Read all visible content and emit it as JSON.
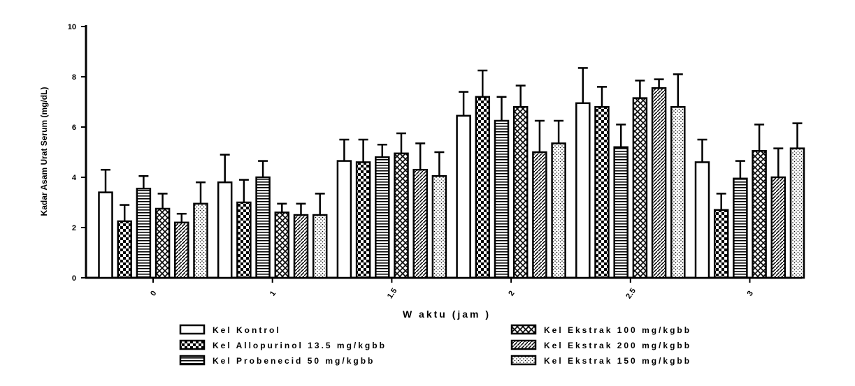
{
  "chart_data": {
    "type": "bar",
    "xlabel": "W aktu (jam )",
    "ylabel": "Kadar Asam Urat Serum (mg/dL)",
    "ylim": [
      0,
      10
    ],
    "yticks": [
      "0",
      "2",
      "4",
      "6",
      "8",
      "10"
    ],
    "categories": [
      "0",
      "1",
      "1.5",
      "2",
      "2.5",
      "3"
    ],
    "category_labels": [
      "0",
      "1",
      "1.5",
      "2",
      "2.5",
      "3"
    ],
    "grid": false,
    "legend_position": "bottom",
    "series": [
      {
        "name": "Kel Kontrol",
        "pattern": "open",
        "values": [
          3.4,
          3.8,
          4.65,
          6.45,
          6.95,
          4.6
        ],
        "errors": [
          0.9,
          1.1,
          0.85,
          0.95,
          1.4,
          0.9
        ]
      },
      {
        "name": "Kel Allopurinol 13.5 mg/kgbb",
        "pattern": "checker",
        "values": [
          2.25,
          3.0,
          4.6,
          7.2,
          6.8,
          2.7
        ],
        "errors": [
          0.65,
          0.9,
          0.9,
          1.05,
          0.8,
          0.65
        ]
      },
      {
        "name": "Kel Probenecid 50 mg/kgbb",
        "pattern": "hstripes",
        "values": [
          3.55,
          4.0,
          4.8,
          6.25,
          5.2,
          3.95
        ],
        "errors": [
          0.5,
          0.65,
          0.5,
          0.95,
          0.9,
          0.7
        ]
      },
      {
        "name": "Kel Ekstrak 100 mg/kgbb",
        "pattern": "crosshatch",
        "values": [
          2.75,
          2.6,
          4.95,
          6.8,
          7.15,
          5.05
        ],
        "errors": [
          0.6,
          0.35,
          0.8,
          0.85,
          0.7,
          1.05
        ]
      },
      {
        "name": "Kel Ekstrak 200 mg/kgbb",
        "pattern": "diagonal",
        "values": [
          2.2,
          2.5,
          4.3,
          5.0,
          7.55,
          4.0
        ],
        "errors": [
          0.35,
          0.45,
          1.05,
          1.25,
          0.35,
          1.15
        ]
      },
      {
        "name": "Kel Ekstrak 150 mg/kgbb",
        "pattern": "dots",
        "values": [
          2.95,
          2.5,
          4.05,
          5.35,
          6.8,
          5.15
        ],
        "errors": [
          0.85,
          0.85,
          0.95,
          0.9,
          1.3,
          1.0
        ]
      }
    ],
    "legend": [
      {
        "label": "Kel Kontrol",
        "pattern": "open"
      },
      {
        "label": "Kel Allopurinol 13.5 mg/kgbb",
        "pattern": "checker"
      },
      {
        "label": "Kel Probenecid 50 mg/kgbb",
        "pattern": "hstripes"
      },
      {
        "label": "Kel Ekstrak 100 mg/kgbb",
        "pattern": "crosshatch"
      },
      {
        "label": "Kel Ekstrak 200 mg/kgbb",
        "pattern": "diagonal"
      },
      {
        "label": "Kel Ekstrak 150 mg/kgbb",
        "pattern": "dots"
      }
    ]
  }
}
